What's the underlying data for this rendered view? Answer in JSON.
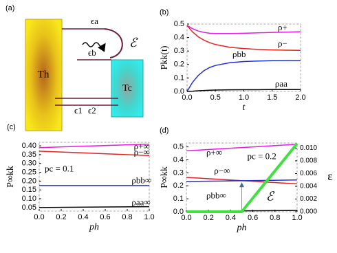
{
  "diagram": {
    "panel_label": "(a)",
    "hot": "Th",
    "cold": "Tc",
    "level_a": "ϵa",
    "level_b": "ϵb",
    "work": "ℰ",
    "level_1": "ϵ1",
    "level_2": "ϵ2"
  },
  "chart_data": [
    {
      "type": "line",
      "label": "(b)",
      "xlabel": "t",
      "ylabel": "Pkk(t)",
      "x": [
        0,
        0.1,
        0.2,
        0.3,
        0.4,
        0.5,
        0.75,
        1.0,
        1.25,
        1.5,
        1.75,
        2.0
      ],
      "series": [
        {
          "name": "ρ+",
          "color": "#e819e8",
          "values": [
            0.49,
            0.465,
            0.448,
            0.438,
            0.432,
            0.43,
            0.43,
            0.432,
            0.435,
            0.438,
            0.44,
            0.443
          ]
        },
        {
          "name": "ρ−",
          "color": "#e8211f",
          "values": [
            0.49,
            0.44,
            0.405,
            0.38,
            0.362,
            0.348,
            0.328,
            0.318,
            0.312,
            0.308,
            0.306,
            0.305
          ]
        },
        {
          "name": "ρbb",
          "color": "#1f2fd8",
          "values": [
            0.0,
            0.07,
            0.12,
            0.155,
            0.178,
            0.193,
            0.213,
            0.222,
            0.226,
            0.228,
            0.229,
            0.23
          ]
        },
        {
          "name": "ρaa",
          "color": "#000000",
          "values": [
            0.0,
            0.002,
            0.005,
            0.007,
            0.009,
            0.01,
            0.012,
            0.013,
            0.013,
            0.014,
            0.014,
            0.014
          ]
        }
      ],
      "xlim": [
        0,
        2
      ],
      "ylim": [
        0,
        0.5
      ],
      "xticks": [
        {
          "value": 0,
          "label": "0.0"
        },
        0.5,
        {
          "value": 1,
          "label": "1.0"
        },
        1.5,
        {
          "value": 2,
          "label": "2.0"
        }
      ],
      "yticks": [
        {
          "value": 0,
          "label": "0.0"
        },
        0.1,
        0.2,
        0.3,
        0.4,
        0.5
      ]
    },
    {
      "type": "line",
      "label": "(c)",
      "xlabel": "ph",
      "ylabel": "P∞kk",
      "annotation": "pc = 0.1",
      "x": [
        0,
        1
      ],
      "series": [
        {
          "name": "ρ+∞",
          "color": "#e819e8",
          "values": [
            0.39,
            0.41
          ]
        },
        {
          "name": "ρ−∞",
          "color": "#e8211f",
          "values": [
            0.37,
            0.345
          ]
        },
        {
          "name": "ρbb∞",
          "color": "#1f2fd8",
          "values": [
            0.175,
            0.175
          ]
        },
        {
          "name": "ρaa∞",
          "color": "#000000",
          "values": [
            0.05,
            0.055
          ]
        }
      ],
      "xlim": [
        0,
        1
      ],
      "ylim": [
        0.03,
        0.42
      ],
      "xticks": [
        {
          "value": 0,
          "label": "0.0"
        },
        0.2,
        0.4,
        0.6,
        0.8,
        {
          "value": 1,
          "label": "1.0"
        }
      ],
      "yticks": [
        0.05,
        {
          "value": 0.1,
          "label": "0.10"
        },
        0.15,
        {
          "value": 0.2,
          "label": "0.20"
        },
        0.25,
        {
          "value": 0.3,
          "label": "0.30"
        },
        0.35,
        {
          "value": 0.4,
          "label": "0.40"
        }
      ]
    },
    {
      "type": "line",
      "label": "(d)",
      "xlabel": "ph",
      "ylabel": "P∞kk",
      "y2label": "ε",
      "annotation": "pc = 0.2",
      "x": [
        0,
        0.5,
        1
      ],
      "series": [
        {
          "name": "ρ+∞",
          "color": "#e819e8",
          "values": [
            0.47,
            0.495,
            0.52
          ]
        },
        {
          "name": "ρ−∞",
          "color": "#e8211f",
          "values": [
            0.265,
            0.24,
            0.215
          ]
        },
        {
          "name": "ρbb∞",
          "color": "#1f2fd8",
          "values": [
            0.233,
            0.239,
            0.245
          ]
        },
        {
          "name": "ρaa∞",
          "color": "#000000",
          "values": [
            0.005,
            0.007,
            0.01
          ]
        },
        {
          "name": "ℰ",
          "color": "#3fe03f",
          "axis": "y2",
          "values": [
            0,
            0,
            0.0107
          ]
        }
      ],
      "xlim": [
        0,
        1
      ],
      "ylim": [
        0,
        0.53
      ],
      "y2lim": [
        0,
        0.0108
      ],
      "xticks": [
        {
          "value": 0,
          "label": "0.0"
        },
        0.2,
        0.4,
        0.6,
        0.8,
        {
          "value": 1,
          "label": "1.0"
        }
      ],
      "yticks": [
        {
          "value": 0,
          "label": "0.0"
        },
        0.1,
        0.2,
        0.3,
        0.4,
        0.5
      ],
      "y2ticks": [
        {
          "value": 0,
          "label": "0.000"
        },
        0.002,
        0.004,
        0.006,
        0.008,
        {
          "value": 0.01,
          "label": "0.010"
        }
      ]
    }
  ]
}
